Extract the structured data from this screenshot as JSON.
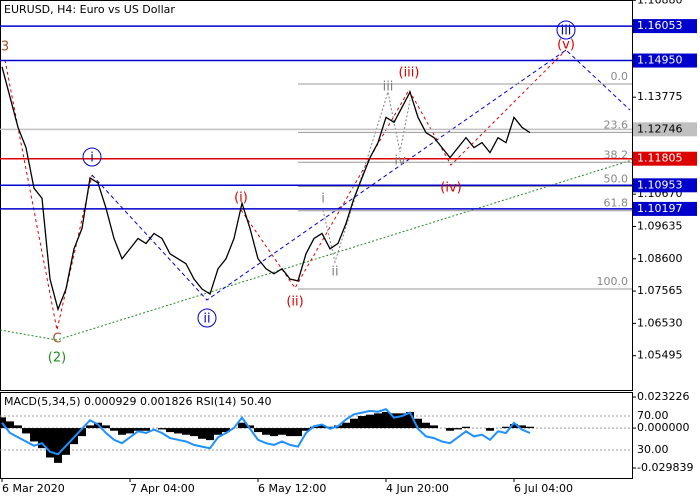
{
  "chart_data": [
    {
      "type": "line",
      "title": "EURUSD, H4:  Euro vs US Dollar",
      "color": "#000000",
      "categories": [
        "6 Mar 2020",
        null,
        null,
        null,
        null,
        null,
        null,
        null,
        null,
        null,
        null,
        null,
        null,
        null,
        null,
        null,
        "7 Apr 04:00",
        null,
        null,
        null,
        null,
        null,
        null,
        null,
        null,
        null,
        null,
        null,
        null,
        null,
        null,
        null,
        "6 May 12:00",
        null,
        null,
        null,
        null,
        null,
        null,
        null,
        null,
        null,
        null,
        null,
        null,
        null,
        null,
        null,
        "4 Jun 20:00",
        null,
        null,
        null,
        null,
        null,
        null,
        null,
        null,
        null,
        null,
        null,
        null,
        null,
        null,
        null,
        "6 Jul 04:00",
        null,
        null
      ],
      "values": [
        1.1475,
        1.1378,
        1.1281,
        1.1216,
        1.1086,
        1.1054,
        1.0795,
        1.0698,
        1.0763,
        1.0892,
        1.0957,
        1.1119,
        1.1103,
        1.1022,
        1.0925,
        1.086,
        1.0892,
        1.0925,
        1.0909,
        1.0941,
        1.0925,
        1.0876,
        1.086,
        1.0844,
        1.0795,
        1.0763,
        1.0747,
        1.0828,
        1.086,
        1.0925,
        1.1038,
        1.0957,
        1.086,
        1.0828,
        1.0812,
        1.0828,
        1.0795,
        1.0789,
        1.0876,
        1.0925,
        1.0941,
        1.0892,
        1.0909,
        1.0973,
        1.1054,
        1.1119,
        1.1184,
        1.1232,
        1.1313,
        1.1297,
        1.1345,
        1.1394,
        1.1313,
        1.1264,
        1.1248,
        1.1216,
        1.1184,
        1.1216,
        1.1248,
        1.1216,
        1.1232,
        1.12,
        1.1248,
        1.1232,
        1.1313,
        1.1281,
        1.1264
      ],
      "ylim": [
        1.04396,
        1.16889
      ],
      "yticks": [
        {
          "value": 1.1688,
          "label": "1.16880"
        },
        1.13775,
        {
          "value": 1.1067,
          "label": "1.10670"
        },
        1.09635,
        {
          "value": 1.086,
          "label": "1.08600"
        },
        1.07565,
        {
          "value": 1.0653,
          "label": "1.06530"
        },
        1.05495
      ],
      "levels": [
        {
          "value": 1.16053,
          "label": "1.16053",
          "color": "#0000cc"
        },
        {
          "value": 1.1495,
          "label": "1.14950",
          "color": "#0000cc"
        },
        {
          "value": 1.12746,
          "label": "1.12746",
          "color": "#c0c0c0"
        },
        {
          "value": 1.11805,
          "label": "1.11805",
          "color": "#dd0000"
        },
        {
          "value": 1.10953,
          "label": "1.10953",
          "color": "#0000cc"
        },
        {
          "value": 1.10197,
          "label": "1.10197",
          "color": "#0000cc"
        }
      ],
      "fibonacci": {
        "high": 1.142,
        "low": 1.0763,
        "levels": [
          {
            "value": 0,
            "label": "0.0"
          },
          23.6,
          38.2,
          {
            "value": 50,
            "label": "50.0"
          },
          61.8,
          {
            "value": 100,
            "label": "100.0"
          }
        ]
      },
      "waves": [
        {
          "label": "3",
          "color": "#a0522d"
        },
        {
          "label": "C",
          "color": "#a0522d"
        },
        {
          "label": "(2)",
          "color": "#228b22"
        },
        {
          "label": "i",
          "color": "#0000cc"
        },
        {
          "label": "ii",
          "color": "#0000cc"
        },
        {
          "label": "iii",
          "color": "#0000cc"
        },
        {
          "label": "(i)",
          "color": "#dd0000"
        },
        {
          "label": "(ii)",
          "color": "#dd0000"
        },
        {
          "label": "(iii)",
          "color": "#dd0000"
        },
        {
          "label": "(iv)",
          "color": "#dd0000"
        },
        {
          "label": "(v)",
          "color": "#dd0000"
        },
        {
          "label": "i",
          "color": "#808080"
        },
        {
          "label": "ii",
          "color": "#808080"
        },
        {
          "label": "iii",
          "color": "#808080"
        },
        {
          "label": "iv",
          "color": "#808080"
        }
      ]
    },
    {
      "type": "indicator",
      "title": "MACD(5,34,5) 0.000929 0.001826 RSI(14) 50.40",
      "ylim": [
        -0.03731,
        0.02696
      ],
      "yticks": [
        0.023226,
        {
          "value": 0,
          "label": "0.000000"
        },
        -0.029839
      ],
      "y2lim": [
        -2.9,
        98.2
      ],
      "y2ticks": [
        {
          "value": 70,
          "label": "70.00"
        },
        {
          "value": 30,
          "label": "30.00"
        }
      ],
      "series": [
        {
          "name": "MACD",
          "color": "#000000",
          "values": [
            0.008,
            0.005,
            0.002,
            -0.004,
            -0.01,
            -0.015,
            -0.022,
            -0.026,
            -0.02,
            -0.012,
            -0.006,
            0.002,
            0.004,
            0.002,
            -0.002,
            -0.005,
            -0.004,
            -0.002,
            -0.002,
            0.0,
            -0.001,
            -0.003,
            -0.004,
            -0.005,
            -0.006,
            -0.008,
            -0.009,
            -0.005,
            -0.003,
            0.0,
            0.004,
            0.002,
            -0.003,
            -0.005,
            -0.006,
            -0.005,
            -0.006,
            -0.006,
            -0.002,
            0.001,
            0.002,
            0.001,
            0.002,
            0.004,
            0.007,
            0.009,
            0.01,
            0.011,
            0.012,
            0.011,
            0.011,
            0.012,
            0.007,
            0.004,
            0.002,
            0.0,
            -0.002,
            -0.001,
            0.001,
            0.0,
            0.0,
            -0.002,
            0.0,
            0.001,
            0.003,
            0.002,
            0.001
          ]
        },
        {
          "name": "RSI",
          "color": "#1e90ff",
          "axis": "y2",
          "values": [
            62,
            50,
            45,
            40,
            35,
            38,
            28,
            25,
            35,
            45,
            55,
            65,
            60,
            50,
            42,
            38,
            45,
            52,
            50,
            54,
            50,
            44,
            42,
            40,
            36,
            34,
            32,
            45,
            50,
            56,
            68,
            55,
            42,
            38,
            36,
            40,
            36,
            34,
            50,
            58,
            60,
            55,
            58,
            66,
            72,
            74,
            76,
            75,
            78,
            68,
            70,
            74,
            55,
            46,
            44,
            40,
            38,
            45,
            52,
            46,
            48,
            42,
            52,
            50,
            62,
            54,
            50
          ]
        }
      ]
    }
  ]
}
